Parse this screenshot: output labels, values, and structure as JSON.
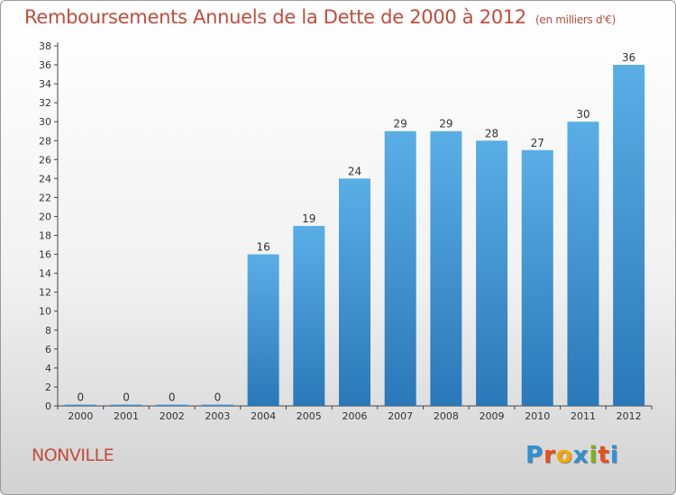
{
  "header": {
    "title": "Remboursements Annuels de la Dette de 2000 à 2012",
    "unit": "(en milliers d'€)"
  },
  "footer": {
    "commune": "NONVILLE",
    "logo": {
      "letters": [
        "P",
        "r",
        "o",
        "x",
        "i",
        "t",
        "i"
      ],
      "colors": [
        "#2f8fd6",
        "#e84e1b",
        "#f5a800",
        "#2f8fd6",
        "#7cb518",
        "#e84e1b",
        "#2f8fd6"
      ]
    }
  },
  "colors": {
    "bar_light": "#5aaee6",
    "bar_dark": "#2a78b8",
    "title": "#c04d3a"
  },
  "chart_data": {
    "type": "bar",
    "title": "Remboursements Annuels de la Dette de 2000 à 2012",
    "xlabel": "",
    "ylabel": "",
    "ylim": [
      0,
      38
    ],
    "y_ticks": [
      0,
      2,
      4,
      6,
      8,
      10,
      12,
      14,
      16,
      18,
      20,
      22,
      24,
      26,
      28,
      30,
      32,
      34,
      36,
      38
    ],
    "grid": false,
    "categories": [
      "2000",
      "2001",
      "2002",
      "2003",
      "2004",
      "2005",
      "2006",
      "2007",
      "2008",
      "2009",
      "2010",
      "2011",
      "2012"
    ],
    "values": [
      0,
      0,
      0,
      0,
      16,
      19,
      24,
      29,
      29,
      28,
      27,
      30,
      36
    ]
  }
}
